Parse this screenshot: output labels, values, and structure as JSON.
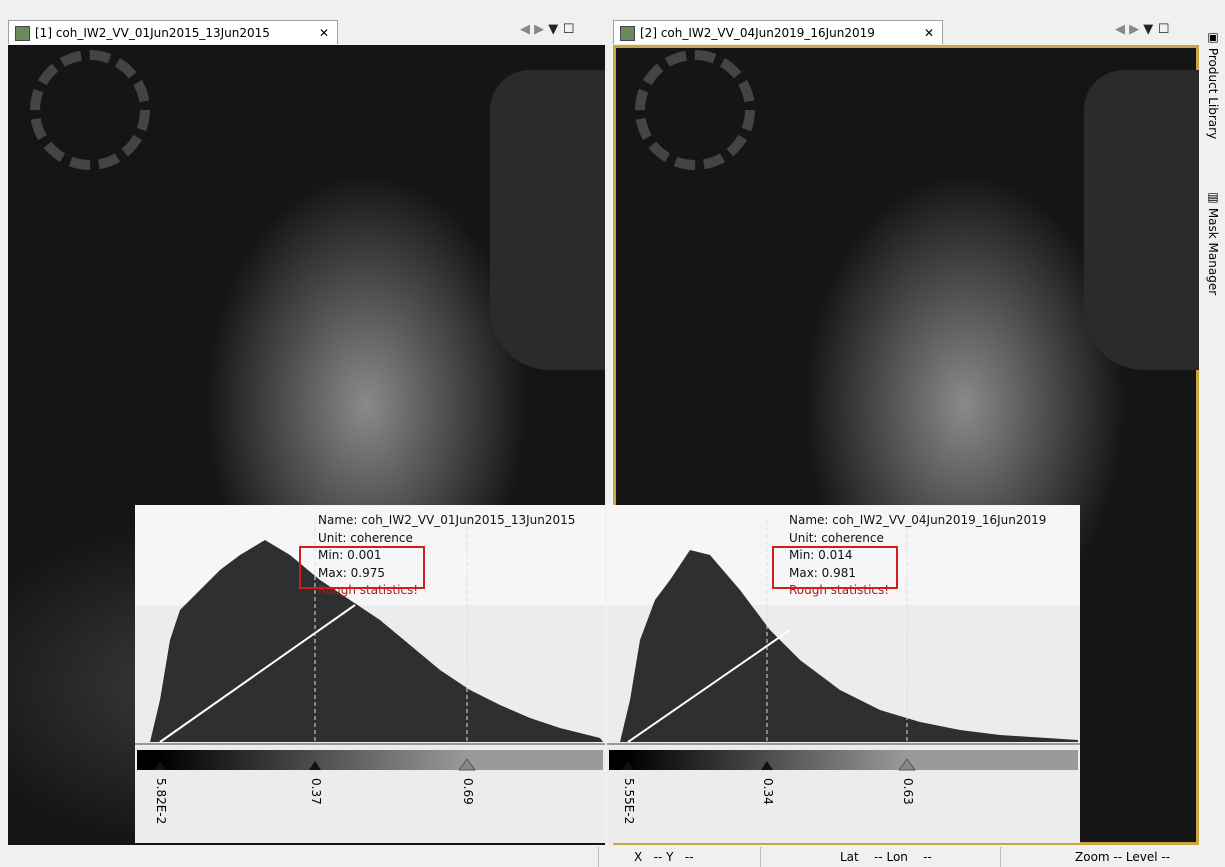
{
  "tabs": [
    {
      "title": "[1] coh_IW2_VV_01Jun2015_13Jun2015",
      "info": {
        "name": "Name: coh_IW2_VV_01Jun2015_13Jun2015",
        "unit": "Unit: coherence",
        "min": "Min: 0.001",
        "max": "Max: 0.975",
        "warning": "Rough statistics!"
      },
      "sliders": [
        "5.82E-2",
        "0.37",
        "0.69"
      ]
    },
    {
      "title": "[2] coh_IW2_VV_04Jun2019_16Jun2019",
      "info": {
        "name": "Name: coh_IW2_VV_04Jun2019_16Jun2019",
        "unit": "Unit: coherence",
        "min": "Min: 0.014",
        "max": "Max: 0.981",
        "warning": "Rough statistics!"
      },
      "sliders": [
        "5.55E-2",
        "0.34",
        "0.63"
      ]
    }
  ],
  "side_tools": [
    "Product Library",
    "Mask Manager"
  ],
  "status": [
    "X   -- Y   --",
    "Lat    -- Lon    --",
    "Zoom -- Level --"
  ]
}
